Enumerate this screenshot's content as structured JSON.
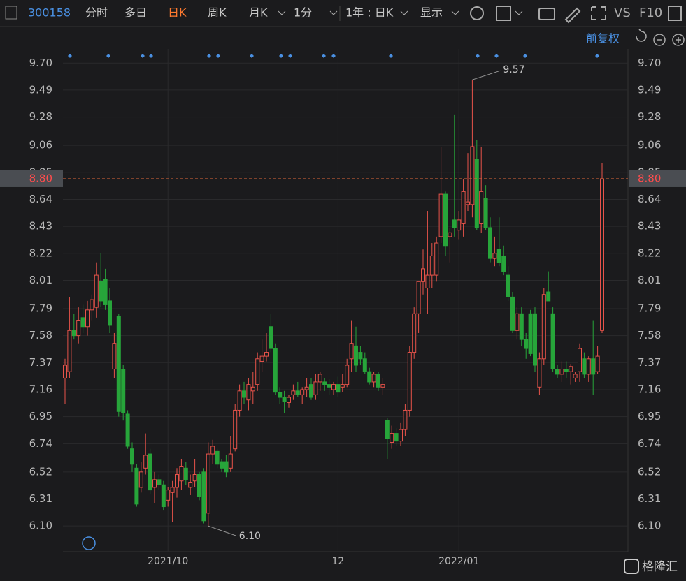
{
  "toolbar": {
    "code": "300158",
    "tabs": [
      "分时",
      "多日",
      "日K",
      "周K",
      "月K",
      "1分"
    ],
    "range": "1年 : 日K",
    "display": "显示",
    "vs": "VS",
    "f10": "F10"
  },
  "adjust": "前复权",
  "logo": "格隆汇",
  "chart_data": {
    "type": "candlestick",
    "categories": [
      null,
      null,
      null,
      null,
      null,
      null,
      null,
      null,
      null,
      null,
      null,
      null,
      null,
      null,
      null,
      null,
      null,
      null,
      null,
      null,
      null,
      null,
      null,
      "2021/10",
      null,
      null,
      null,
      null,
      null,
      null,
      null,
      null,
      null,
      null,
      null,
      null,
      null,
      null,
      null,
      null,
      null,
      null,
      null,
      null,
      null,
      null,
      null,
      null,
      null,
      null,
      null,
      null,
      null,
      null,
      null,
      null,
      null,
      null,
      null,
      null,
      null,
      "12",
      null,
      null,
      null,
      null,
      null,
      null,
      null,
      null,
      null,
      null,
      null,
      null,
      null,
      null,
      null,
      null,
      null,
      null,
      null,
      null,
      null,
      null,
      null,
      null,
      null,
      null,
      "2022/01",
      null,
      null,
      null,
      null,
      null,
      null,
      null,
      null,
      null,
      null,
      null,
      null,
      null,
      null,
      null,
      null,
      null,
      null,
      null,
      null,
      null,
      null,
      null,
      null,
      null,
      null,
      null,
      null,
      null,
      null,
      null,
      null
    ],
    "open": [
      7.25,
      7.3,
      7.62,
      7.58,
      7.72,
      7.65,
      7.78,
      7.8,
      8.0,
      8.02,
      7.85,
      7.32,
      7.73,
      7.32,
      6.97,
      6.7,
      6.55,
      6.4,
      6.55,
      6.66,
      6.4,
      6.46,
      6.42,
      6.3,
      6.36,
      6.4,
      6.45,
      6.55,
      6.4,
      6.45,
      6.5,
      6.52,
      6.2,
      6.66,
      6.68,
      6.6,
      6.6,
      6.55,
      6.7,
      7.0,
      7.15,
      7.08,
      7.15,
      7.2,
      7.38,
      7.42,
      7.65,
      7.48,
      7.14,
      7.1,
      7.06,
      7.12,
      7.15,
      7.12,
      7.16,
      7.2,
      7.12,
      7.22,
      7.22,
      7.2,
      7.16,
      7.2,
      7.18,
      7.2,
      7.4,
      7.5,
      7.45,
      7.4,
      7.3,
      7.22,
      7.28,
      7.18,
      6.92,
      6.75,
      6.82,
      6.76,
      6.85,
      7.0,
      7.45,
      7.75,
      8.0,
      7.95,
      8.05,
      8.05,
      8.35,
      8.68,
      8.35,
      8.48,
      8.4,
      8.45,
      8.6,
      8.6,
      8.95,
      8.45,
      8.65,
      8.42,
      8.18,
      8.25,
      8.2,
      8.05,
      7.88,
      7.62,
      7.75,
      7.55,
      7.75,
      7.75,
      7.18,
      7.4,
      7.92,
      7.75,
      7.32,
      7.28,
      7.32,
      7.3,
      7.25,
      7.3,
      7.4,
      7.28,
      7.4,
      7.3,
      7.62
    ],
    "high": [
      7.4,
      7.88,
      7.75,
      7.8,
      7.82,
      7.85,
      7.9,
      8.15,
      8.22,
      8.1,
      7.95,
      7.6,
      7.75,
      7.35,
      7.0,
      6.75,
      6.58,
      6.6,
      6.82,
      6.7,
      6.52,
      6.5,
      6.45,
      6.4,
      6.45,
      6.55,
      6.62,
      6.6,
      6.5,
      6.62,
      6.52,
      6.55,
      6.75,
      6.77,
      6.7,
      6.62,
      6.65,
      6.8,
      7.05,
      7.2,
      7.22,
      7.25,
      7.3,
      7.45,
      7.55,
      7.6,
      7.75,
      7.52,
      7.18,
      7.15,
      7.12,
      7.2,
      7.22,
      7.18,
      7.25,
      7.25,
      7.28,
      7.3,
      7.25,
      7.24,
      7.22,
      7.26,
      7.28,
      7.4,
      7.7,
      7.65,
      7.5,
      7.45,
      7.33,
      7.3,
      7.3,
      7.25,
      6.94,
      6.88,
      6.86,
      6.9,
      7.05,
      7.5,
      7.8,
      8.0,
      8.25,
      8.55,
      8.3,
      8.35,
      9.05,
      8.7,
      8.42,
      9.3,
      8.55,
      8.8,
      9.0,
      9.57,
      9.1,
      9.05,
      8.75,
      8.5,
      8.35,
      8.5,
      8.28,
      8.12,
      7.92,
      7.8,
      7.8,
      7.6,
      7.78,
      7.8,
      7.45,
      7.95,
      8.08,
      7.8,
      7.35,
      7.38,
      7.38,
      7.36,
      7.3,
      7.52,
      7.45,
      7.42,
      7.7,
      7.5,
      8.92
    ],
    "low": [
      7.05,
      7.25,
      7.55,
      7.52,
      7.6,
      7.58,
      7.7,
      7.72,
      7.8,
      7.78,
      7.6,
      7.25,
      6.95,
      6.92,
      6.7,
      6.52,
      6.25,
      6.36,
      6.5,
      6.35,
      6.28,
      6.38,
      6.22,
      6.25,
      6.13,
      6.32,
      6.38,
      6.42,
      6.34,
      6.4,
      6.3,
      6.12,
      6.1,
      6.58,
      6.55,
      6.52,
      6.48,
      6.52,
      6.68,
      6.95,
      7.05,
      7.0,
      7.05,
      7.15,
      7.3,
      7.38,
      7.45,
      7.12,
      7.05,
      6.98,
      7.02,
      7.08,
      7.1,
      7.05,
      7.1,
      7.08,
      7.08,
      7.15,
      7.15,
      7.12,
      7.12,
      7.1,
      7.14,
      7.18,
      7.3,
      7.3,
      7.35,
      7.28,
      7.2,
      7.18,
      7.15,
      7.12,
      6.62,
      6.7,
      6.72,
      6.72,
      6.8,
      6.95,
      7.4,
      7.6,
      7.9,
      7.75,
      7.95,
      8.0,
      8.3,
      8.2,
      8.15,
      8.35,
      8.33,
      8.35,
      8.55,
      8.5,
      8.4,
      8.38,
      8.4,
      8.15,
      8.12,
      8.12,
      8.05,
      7.85,
      7.6,
      7.55,
      7.5,
      7.4,
      7.42,
      7.3,
      7.12,
      7.35,
      7.85,
      7.3,
      7.25,
      7.22,
      7.25,
      7.2,
      7.22,
      7.22,
      7.25,
      7.22,
      7.12,
      7.28,
      7.6
    ],
    "close": [
      7.35,
      7.62,
      7.58,
      7.7,
      7.65,
      7.78,
      7.86,
      8.05,
      7.85,
      7.82,
      7.66,
      7.52,
      6.99,
      6.98,
      6.72,
      6.58,
      6.27,
      6.52,
      6.65,
      6.38,
      6.46,
      6.42,
      6.25,
      6.38,
      6.4,
      6.5,
      6.56,
      6.46,
      6.44,
      6.5,
      6.33,
      6.14,
      6.66,
      6.72,
      6.58,
      6.55,
      6.52,
      6.66,
      7.0,
      7.15,
      7.1,
      7.2,
      7.18,
      7.4,
      7.42,
      7.45,
      7.48,
      7.14,
      7.1,
      7.07,
      7.1,
      7.15,
      7.12,
      7.16,
      7.18,
      7.1,
      7.22,
      7.28,
      7.2,
      7.18,
      7.2,
      7.14,
      7.2,
      7.35,
      7.52,
      7.35,
      7.4,
      7.3,
      7.22,
      7.28,
      7.18,
      7.2,
      6.78,
      6.82,
      6.76,
      6.85,
      7.0,
      7.45,
      7.75,
      8.0,
      8.1,
      8.05,
      8.2,
      8.3,
      8.68,
      8.28,
      8.38,
      8.42,
      8.48,
      8.7,
      8.62,
      9.05,
      8.42,
      8.7,
      8.42,
      8.18,
      8.22,
      8.15,
      8.08,
      7.88,
      7.62,
      7.75,
      7.55,
      7.48,
      7.44,
      7.35,
      7.4,
      7.9,
      7.85,
      7.32,
      7.28,
      7.32,
      7.3,
      7.34,
      7.28,
      7.48,
      7.28,
      7.4,
      7.28,
      7.42,
      8.8
    ],
    "up_color": "#e8534a",
    "down_color": "#27a53a",
    "ylim": [
      5.9,
      9.81
    ],
    "yticks": [
      {
        "value": 9.7,
        "label": "9.70"
      },
      {
        "value": 9.49,
        "label": "9.49"
      },
      {
        "value": 9.28,
        "label": "9.28"
      },
      {
        "value": 9.06,
        "label": "9.06"
      },
      {
        "value": 8.85,
        "label": "8.85"
      },
      {
        "value": 8.64,
        "label": "8.64"
      },
      {
        "value": 8.43,
        "label": "8.43"
      },
      {
        "value": 8.22,
        "label": "8.22"
      },
      {
        "value": 8.01,
        "label": "8.01"
      },
      {
        "value": 7.79,
        "label": "7.79"
      },
      {
        "value": 7.58,
        "label": "7.58"
      },
      {
        "value": 7.37,
        "label": "7.37"
      },
      {
        "value": 7.16,
        "label": "7.16"
      },
      {
        "value": 6.95,
        "label": "6.95"
      },
      {
        "value": 6.74,
        "label": "6.74"
      },
      {
        "value": 6.52,
        "label": "6.52"
      },
      {
        "value": 6.31,
        "label": "6.31"
      },
      {
        "value": 6.1,
        "label": "6.10"
      }
    ],
    "grid": true,
    "max_label": "9.57",
    "min_label": "6.10",
    "price_line": {
      "value": 8.8,
      "label": "8.80"
    }
  }
}
